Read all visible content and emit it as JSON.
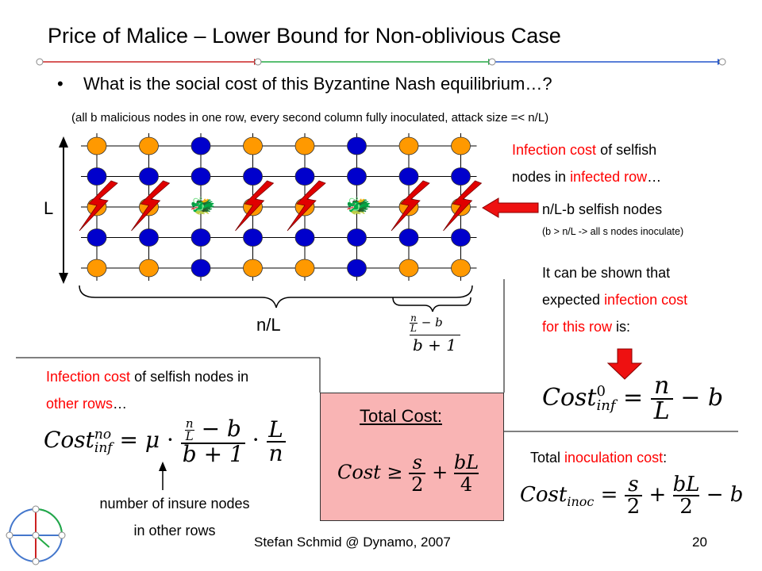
{
  "slide": {
    "title": "Price of Malice – Lower Bound for Non-oblivious Case",
    "bullet_marker": "•",
    "bullet": "What is the social cost of this Byzantine Nash equilibrium…?",
    "note": "(all b malicious nodes in one row, every second column fully inoculated, attack size =< n/L)"
  },
  "grid": {
    "label_L": "L",
    "label_nL": "n/L",
    "colors": {
      "selfish": "#ff9900",
      "inoculated": "#0000cc",
      "bolt": "#e00000"
    },
    "columns": [
      "orange",
      "orange",
      "blue",
      "orange",
      "orange",
      "blue",
      "orange",
      "orange"
    ],
    "malicious_columns": [
      2,
      5
    ],
    "malicious_glyph": "🐲"
  },
  "fraction_label": {
    "numerator_left": "n",
    "numerator_den": "L",
    "numerator_rest": "− b",
    "denominator": "b + 1"
  },
  "right_panel": {
    "infection_row": {
      "p1": "Infection cost",
      "p2": " of selfish",
      "p3": "nodes in ",
      "p4": "infected row",
      "p5": "…"
    },
    "selfish_nodes": "n/L-b selfish nodes",
    "selfish_nodes_sub": "(b > n/L -> all s nodes inoculate)",
    "shown": {
      "l1": "It can be shown that",
      "l2a": "expected ",
      "l2b": "infection cost",
      "l3a": "for this row",
      "l3b": " is:"
    },
    "formula_cost0": {
      "cost": "Cost",
      "sup": "0",
      "sub": "inf",
      "rhs_num": "n",
      "rhs_den": "L",
      "rhs_rest": "− b"
    },
    "inoculation_label": {
      "a": "Total ",
      "b": "inoculation cost",
      "c": ":"
    },
    "formula_inoc": {
      "cost": "Cost",
      "sub": "inoc",
      "s": "s",
      "two": "2",
      "bL": "bL",
      "two2": "2",
      "rest": "− b"
    }
  },
  "left_panel": {
    "other_rows": {
      "a": "Infection cost",
      "b": " of selfish nodes in",
      "c": "other rows",
      "d": "…"
    },
    "formula_no": {
      "cost": "Cost",
      "sup": "no",
      "sub": "inf",
      "mu": "μ",
      "n": "n",
      "L": "L",
      "rest": "− b",
      "den": "b + 1",
      "L2": "L",
      "n2": "n"
    },
    "insure_note": {
      "l1": "number of insure nodes",
      "l2": "in other rows"
    }
  },
  "total": {
    "title": "Total Cost:",
    "formula": {
      "cost": "Cost",
      "s": "s",
      "two": "2",
      "bL": "bL",
      "four": "4"
    }
  },
  "footer": {
    "text": "Stefan Schmid @ Dynamo, 2007",
    "page": "20"
  }
}
